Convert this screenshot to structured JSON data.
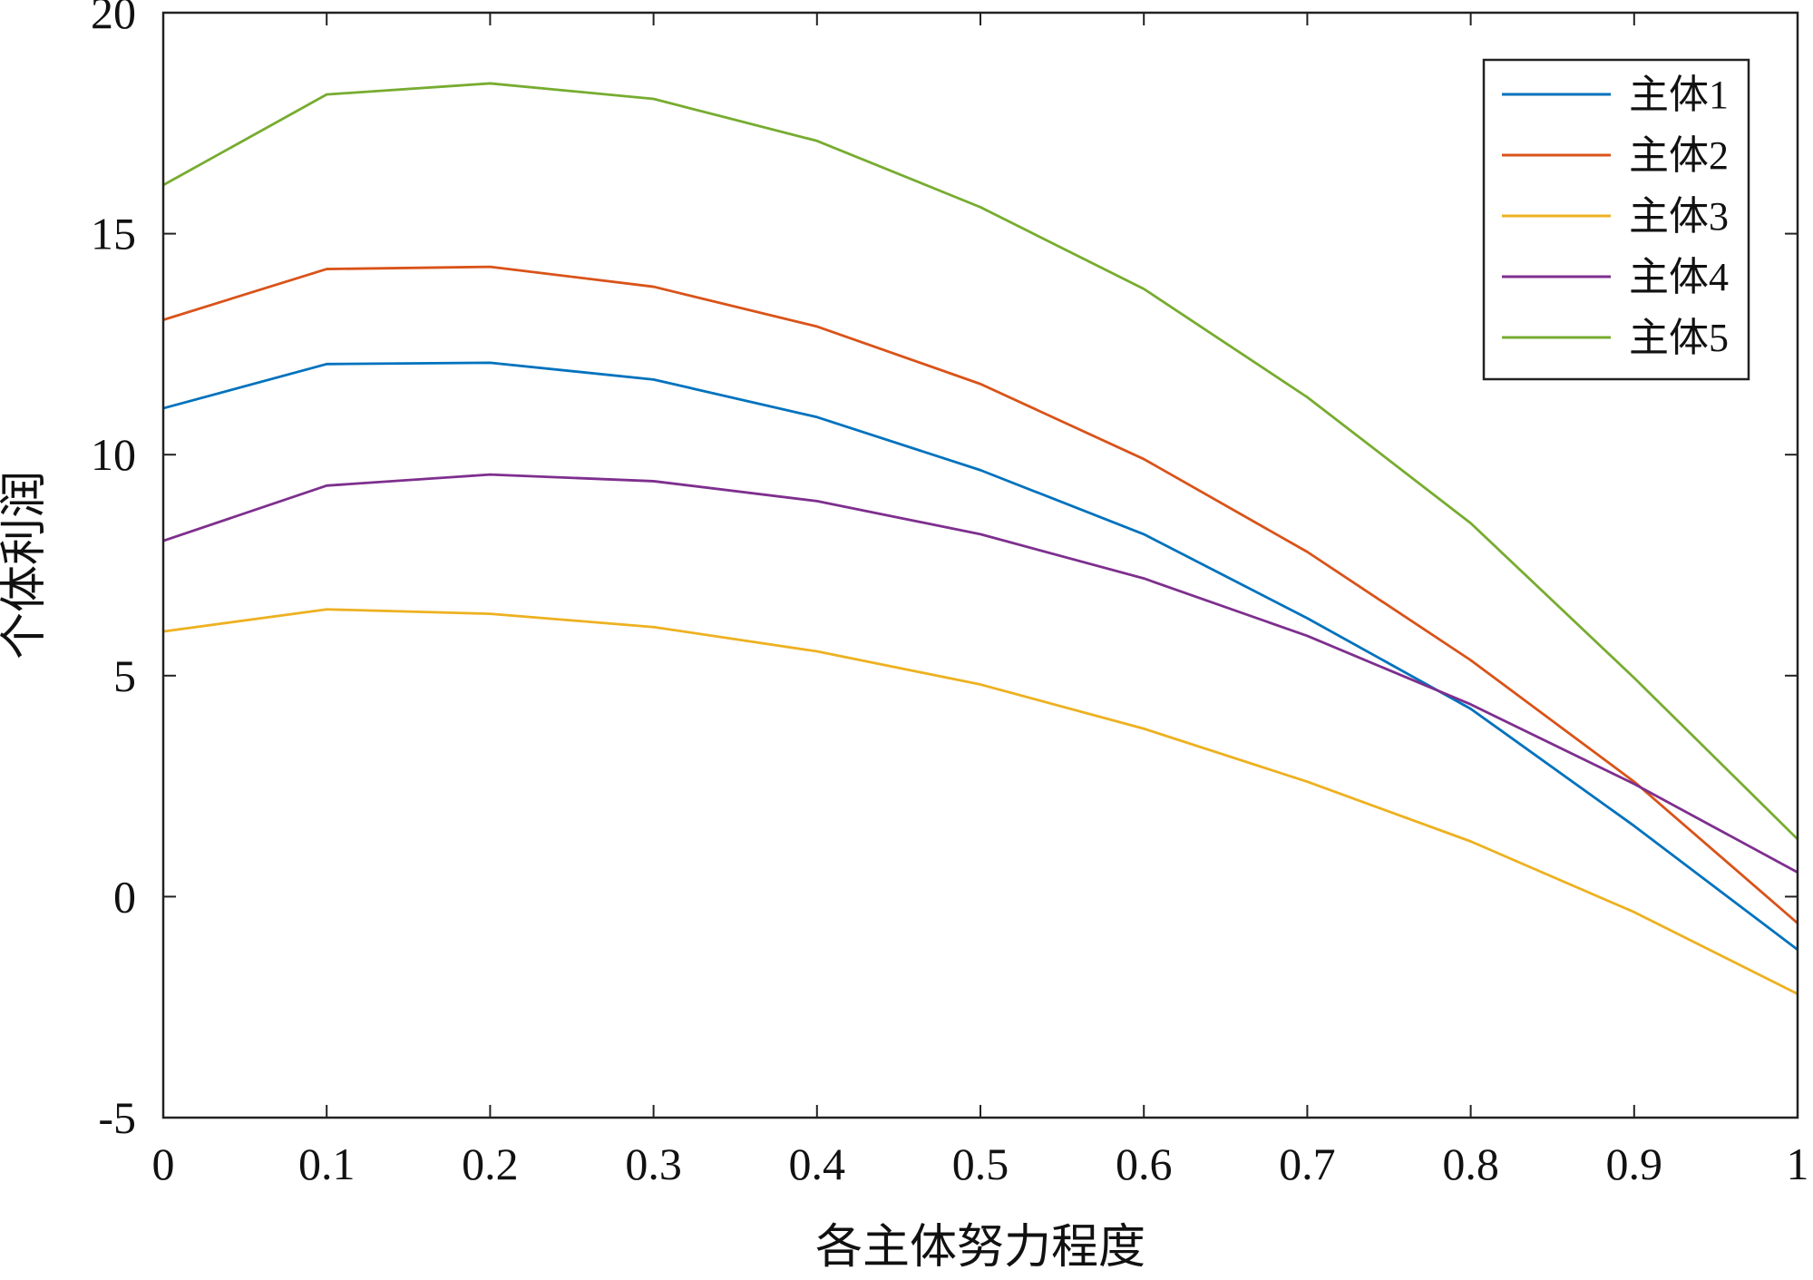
{
  "chart_data": {
    "type": "line",
    "xlabel": "各主体努力程度",
    "ylabel": "个体利润",
    "xlim": [
      0,
      1
    ],
    "ylim": [
      -5,
      20
    ],
    "x_ticks": [
      "0",
      "0.1",
      "0.2",
      "0.3",
      "0.4",
      "0.5",
      "0.6",
      "0.7",
      "0.8",
      "0.9",
      "1"
    ],
    "y_ticks": [
      "20",
      "15",
      "10",
      "5",
      "0",
      "-5"
    ],
    "grid": false,
    "legend_position": "top-right",
    "x": [
      0,
      0.1,
      0.2,
      0.3,
      0.4,
      0.5,
      0.6,
      0.7,
      0.8,
      0.9,
      1.0
    ],
    "series": [
      {
        "name": "主体1",
        "color": "#0072BD",
        "values": [
          11.05,
          12.05,
          12.08,
          11.7,
          10.85,
          9.65,
          8.2,
          6.3,
          4.25,
          1.6,
          -1.2
        ]
      },
      {
        "name": "主体2",
        "color": "#D95319",
        "values": [
          13.05,
          14.2,
          14.25,
          13.8,
          12.9,
          11.6,
          9.9,
          7.8,
          5.35,
          2.6,
          -0.6
        ]
      },
      {
        "name": "主体3",
        "color": "#EDB120",
        "values": [
          6.0,
          6.5,
          6.4,
          6.1,
          5.55,
          4.8,
          3.8,
          2.6,
          1.25,
          -0.35,
          -2.2
        ]
      },
      {
        "name": "主体4",
        "color": "#7E2F8E",
        "values": [
          8.05,
          9.3,
          9.55,
          9.4,
          8.95,
          8.2,
          7.2,
          5.9,
          4.35,
          2.55,
          0.55
        ]
      },
      {
        "name": "主体5",
        "color": "#77AC30",
        "values": [
          16.1,
          18.15,
          18.4,
          18.05,
          17.1,
          15.6,
          13.75,
          11.3,
          8.45,
          4.95,
          1.3
        ]
      }
    ]
  }
}
